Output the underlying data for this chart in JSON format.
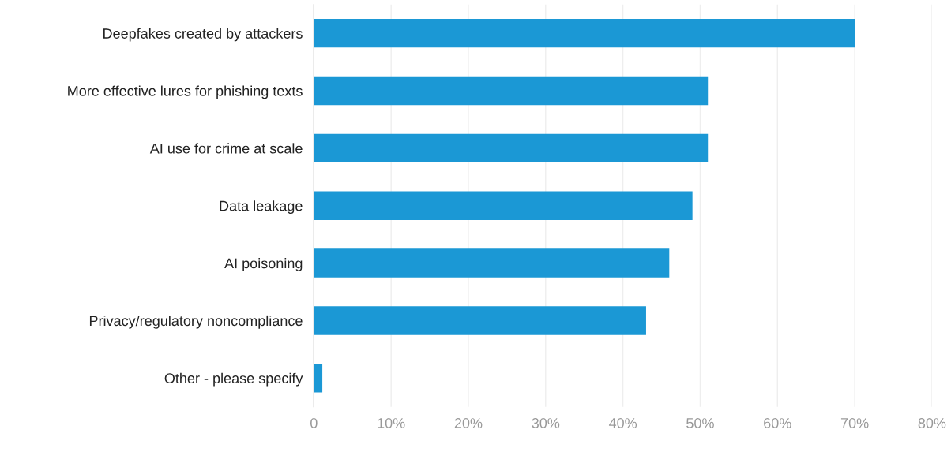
{
  "chart_data": {
    "type": "bar",
    "orientation": "horizontal",
    "categories": [
      "Deepfakes created by attackers",
      "More effective lures for phishing texts",
      "AI use for crime at scale",
      "Data leakage",
      "AI poisoning",
      "Privacy/regulatory noncompliance",
      "Other - please specify"
    ],
    "values": [
      70,
      51,
      51,
      49,
      46,
      43,
      1.1
    ],
    "color": "#1b98d5",
    "xlim": [
      0,
      80
    ],
    "xticks": [
      0,
      {
        "value": 10,
        "label": "10%"
      },
      {
        "value": 20,
        "label": "20%"
      },
      {
        "value": 30,
        "label": "30%"
      },
      {
        "value": 40,
        "label": "40%"
      },
      {
        "value": 50,
        "label": "50%"
      },
      {
        "value": 60,
        "label": "60%"
      },
      {
        "value": 70,
        "label": "70%"
      },
      {
        "value": 80,
        "label": "80%"
      }
    ],
    "grid": "x"
  }
}
